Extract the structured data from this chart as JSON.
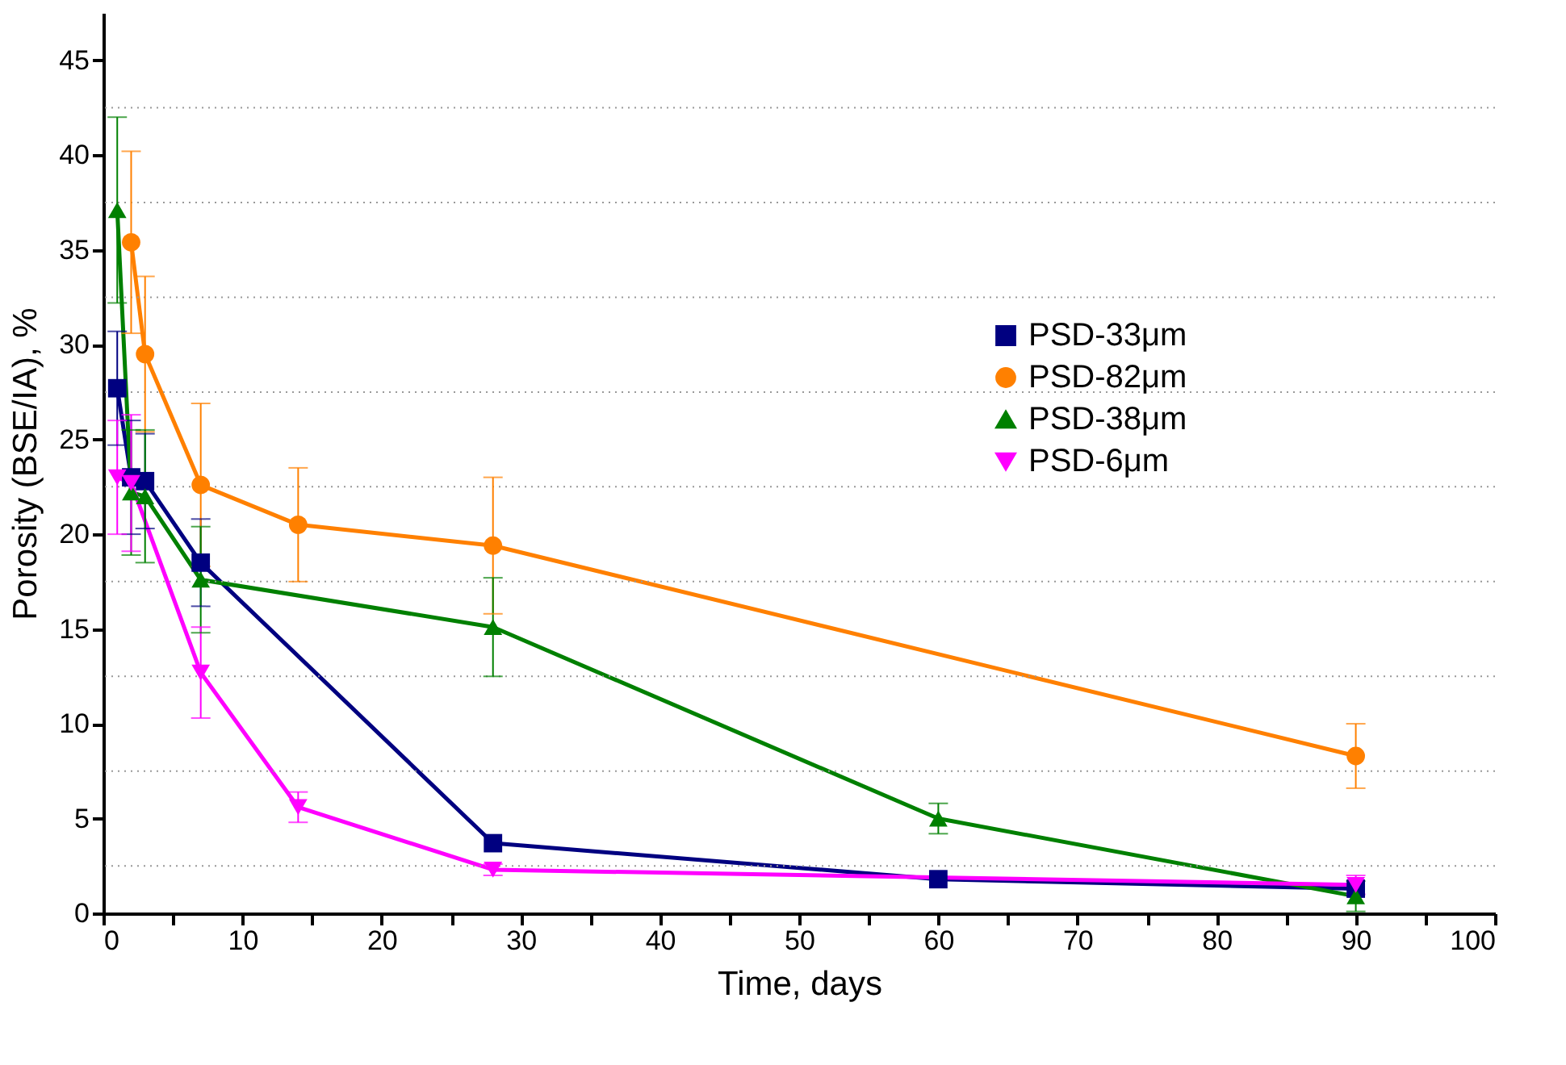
{
  "chart_data": {
    "type": "line",
    "xlabel": "Time, days",
    "ylabel": "Porosity (BSE/IA), %",
    "xlim": [
      0,
      100
    ],
    "ylim": [
      0,
      47.5
    ],
    "xticks": [
      0,
      {
        "value": 5,
        "label": null
      },
      10,
      {
        "value": 15,
        "label": null
      },
      20,
      {
        "value": 25,
        "label": null
      },
      30,
      {
        "value": 35,
        "label": null
      },
      40,
      {
        "value": 45,
        "label": null
      },
      50,
      {
        "value": 55,
        "label": null
      },
      60,
      {
        "value": 65,
        "label": null
      },
      70,
      {
        "value": 75,
        "label": null
      },
      80,
      {
        "value": 85,
        "label": null
      },
      90,
      {
        "value": 95,
        "label": null
      },
      100
    ],
    "yticks": [
      0,
      {
        "value": 2.5,
        "label": null
      },
      5,
      {
        "value": 7.5,
        "label": null
      },
      10,
      {
        "value": 12.5,
        "label": null
      },
      15,
      {
        "value": 17.5,
        "label": null
      },
      20,
      {
        "value": 22.5,
        "label": null
      },
      25,
      {
        "value": 27.5,
        "label": null
      },
      30,
      {
        "value": 32.5,
        "label": null
      },
      35,
      {
        "value": 37.5,
        "label": null
      },
      40,
      {
        "value": 42.5,
        "label": null
      },
      45
    ],
    "grid": "y",
    "legend": "top right",
    "line_style": "solid",
    "series": [
      {
        "name": "PSD-33μm",
        "color": "#000080",
        "marker": "square",
        "x": [
          1,
          2,
          3,
          7,
          28,
          60,
          90
        ],
        "values": [
          27.7,
          23.0,
          22.8,
          18.5,
          3.7,
          1.8,
          1.3
        ],
        "errors": [
          3.0,
          3.0,
          2.5,
          2.3,
          null,
          null,
          null
        ]
      },
      {
        "name": "PSD-82μm",
        "color": "#ff8000",
        "marker": "circle",
        "x": [
          2,
          3,
          7,
          14,
          28,
          90
        ],
        "values": [
          35.4,
          29.5,
          22.6,
          20.5,
          19.4,
          8.3
        ],
        "errors": [
          4.8,
          4.1,
          4.3,
          3.0,
          3.6,
          1.7
        ]
      },
      {
        "name": "PSD-38μm",
        "color": "#008000",
        "marker": "triangle",
        "x": [
          1,
          2,
          3,
          7,
          28,
          60,
          90
        ],
        "values": [
          37.1,
          22.2,
          22.0,
          17.6,
          15.1,
          5.0,
          0.9
        ],
        "errors": [
          4.9,
          3.3,
          3.5,
          2.8,
          2.6,
          0.8,
          0.8
        ]
      },
      {
        "name": "PSD-6μm",
        "color": "#ff00ff",
        "marker": "triangle-down",
        "x": [
          1,
          2,
          7,
          14,
          28,
          90
        ],
        "values": [
          23.0,
          22.7,
          12.7,
          5.6,
          2.3,
          1.5
        ],
        "errors": [
          3.0,
          3.6,
          2.4,
          0.8,
          0.3,
          0.5
        ]
      }
    ]
  }
}
